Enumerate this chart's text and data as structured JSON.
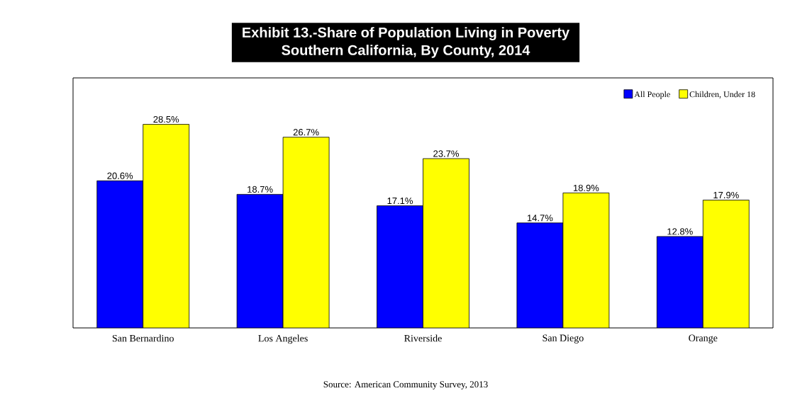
{
  "chart_data": {
    "type": "bar",
    "title": "Exhibit 13.-Share of Population Living in Poverty",
    "subtitle": "Southern California, By County, 2014",
    "categories": [
      "San Bernardino",
      "Los Angeles",
      "Riverside",
      "San Diego",
      "Orange"
    ],
    "series": [
      {
        "name": "All People",
        "color": "#0000ff",
        "values": [
          20.6,
          18.7,
          17.1,
          14.7,
          12.8
        ],
        "value_labels": [
          "20.6%",
          "18.7%",
          "17.1%",
          "14.7%",
          "12.8%"
        ]
      },
      {
        "name": "Children, Under 18",
        "color": "#ffff00",
        "values": [
          28.5,
          26.7,
          23.7,
          18.9,
          17.9
        ],
        "value_labels": [
          "28.5%",
          "26.7%",
          "23.7%",
          "18.9%",
          "17.9%"
        ]
      }
    ],
    "ylim": [
      0,
      35
    ],
    "tick_labels": "x",
    "legend": "top right",
    "annotations": [
      "Source:  American Community Survey, 2013"
    ]
  }
}
